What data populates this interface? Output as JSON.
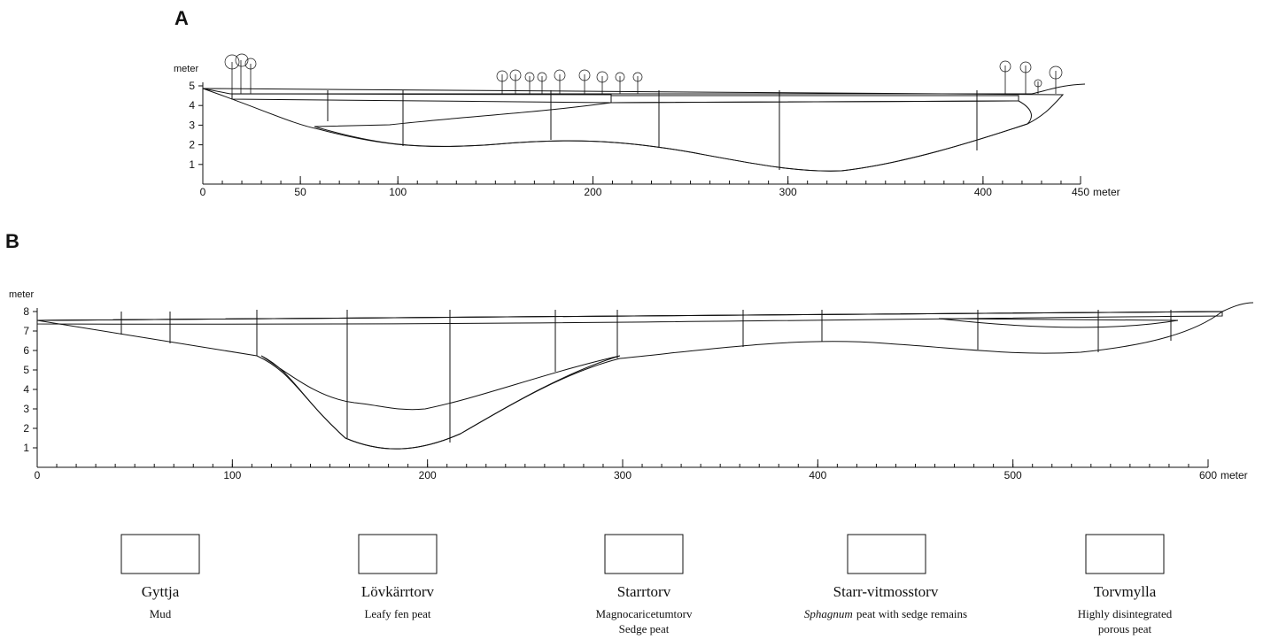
{
  "panels": [
    {
      "label": "A",
      "y_label": "meter",
      "ylim": [
        0,
        5
      ],
      "yticks": [
        1,
        2,
        3,
        4,
        5
      ],
      "xlim": [
        0,
        450
      ],
      "xticks": [
        0,
        50,
        100,
        200,
        300,
        400,
        450
      ],
      "x_unit": "meter"
    },
    {
      "label": "B",
      "y_label": "meter",
      "ylim": [
        0,
        8
      ],
      "yticks": [
        1,
        2,
        3,
        4,
        5,
        6,
        7,
        8
      ],
      "xlim": [
        0,
        600
      ],
      "xticks": [
        0,
        100,
        200,
        300,
        400,
        500,
        600
      ],
      "x_unit": "meter"
    }
  ],
  "legend": [
    {
      "name": "Gyttja",
      "lines": [
        "Mud"
      ]
    },
    {
      "name": "Lövkärrtorv",
      "lines": [
        "Leafy fen peat"
      ]
    },
    {
      "name": "Starrtorv",
      "lines": [
        "Magnocaricetumtorv",
        "Sedge peat"
      ]
    },
    {
      "name": "Starr-vitmosstorv",
      "italic": "Sphagnum",
      "lines": [
        "peat with sedge remains"
      ]
    },
    {
      "name": "Torvmylla",
      "lines": [
        "Highly disintegrated",
        "porous peat"
      ]
    }
  ]
}
